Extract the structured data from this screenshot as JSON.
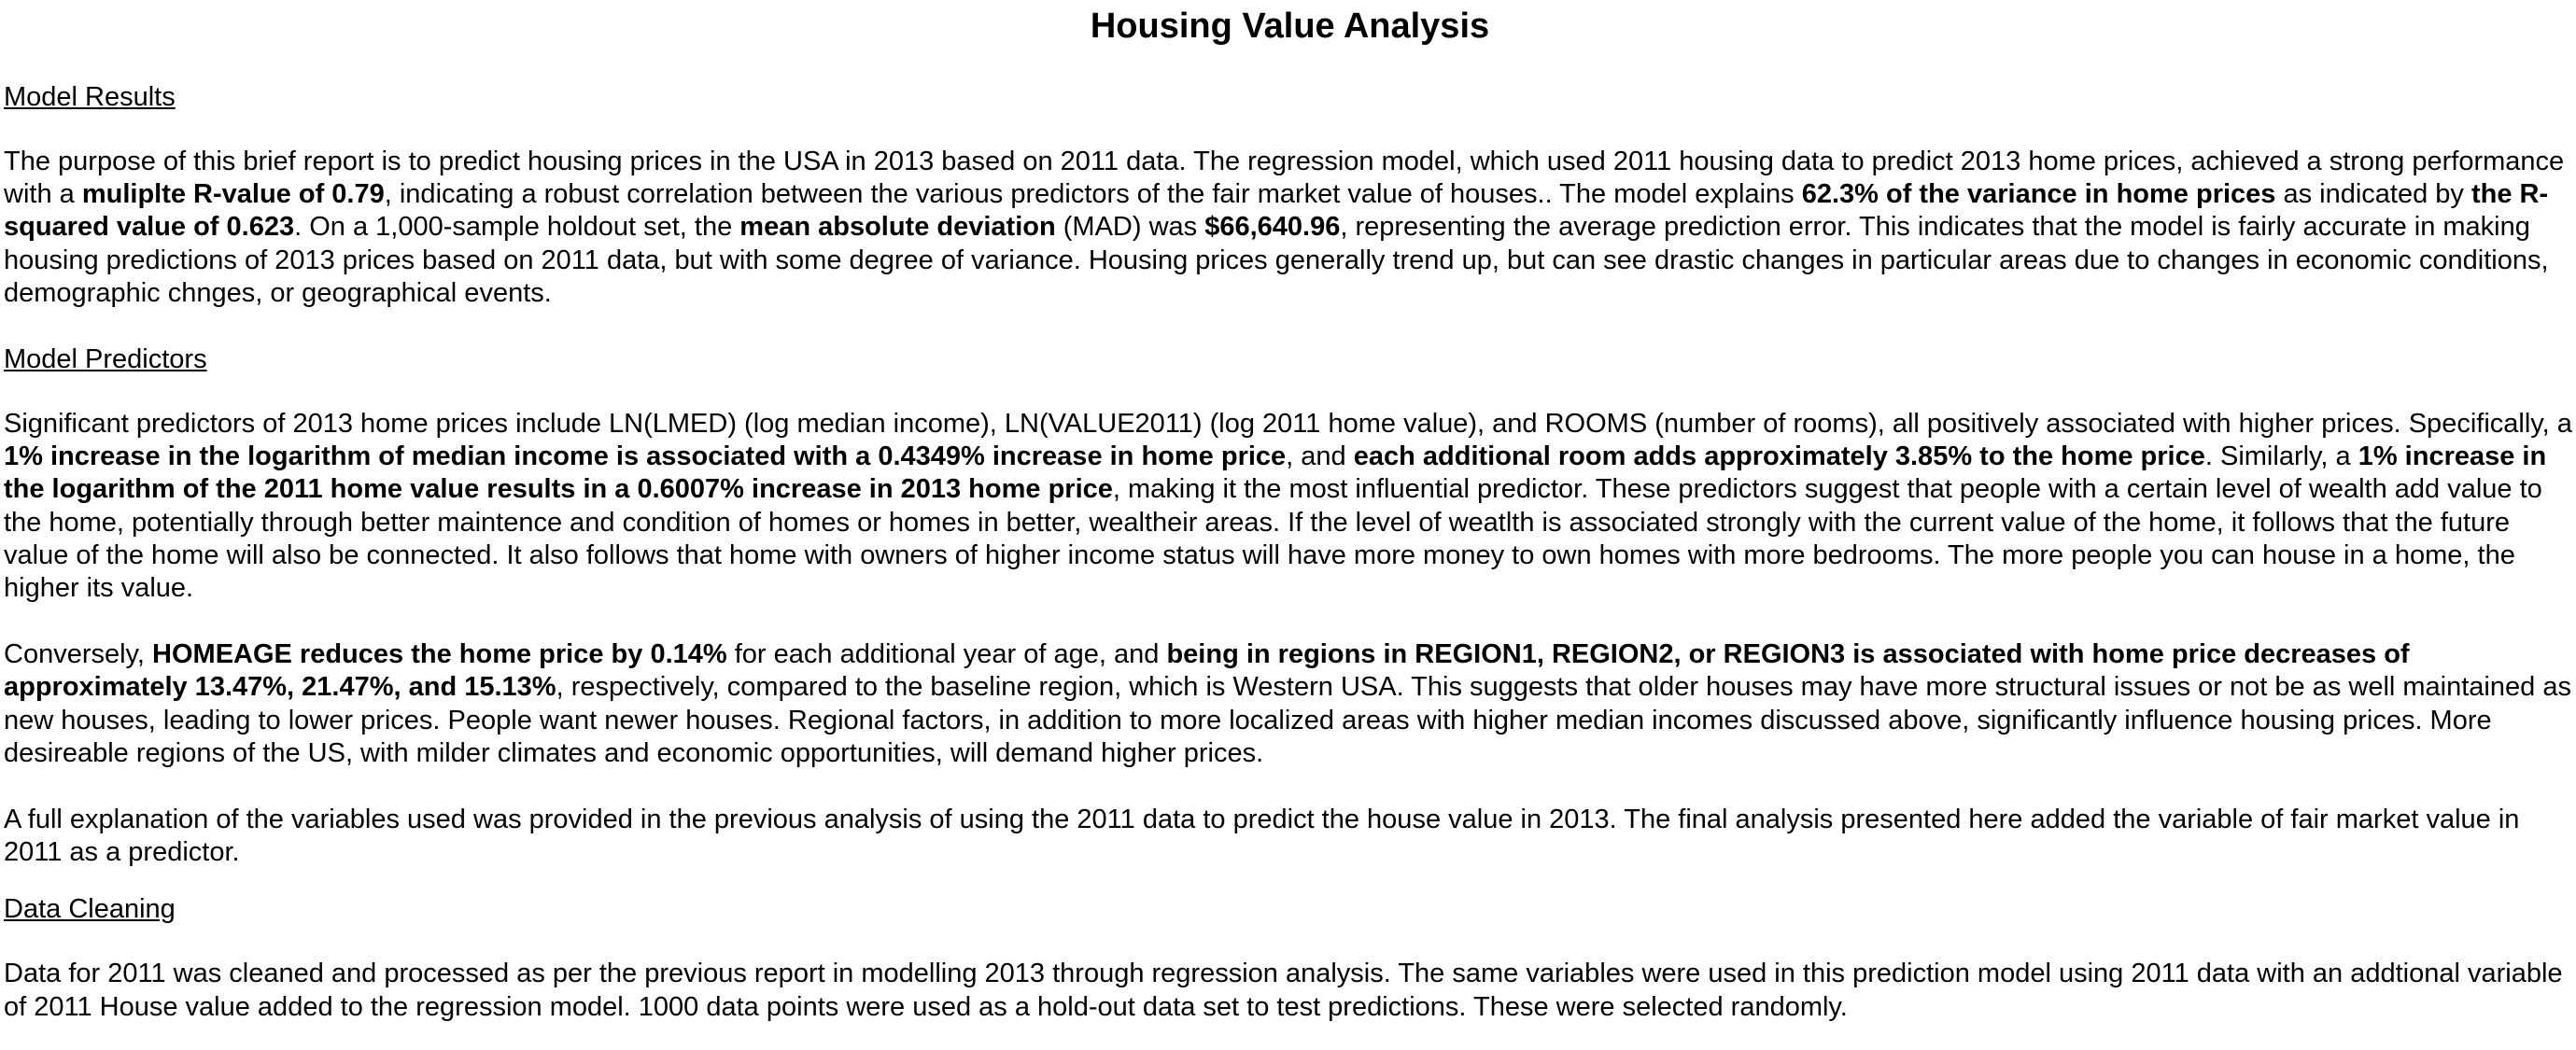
{
  "title": "Housing Value Analysis",
  "sections": {
    "model_results": {
      "heading": "Model Results",
      "p1": {
        "t0": "The purpose of this brief report is to predict housing prices in the USA in 2013 based on 2011 data. The regression model, which used 2011 housing data to predict 2013 home prices, achieved a strong performance with a ",
        "b1": "muliplte R-value of 0.79",
        "t2": ", indicating a robust correlation between the various predictors of the fair market value of houses.. The model explains ",
        "b3": "62.3% of the variance in home prices",
        "t4": " as indicated by ",
        "b5": "the R-squared value of 0.623",
        "t6": ". On a 1,000-sample holdout set, the ",
        "b7": "mean absolute deviation",
        "t8": " (MAD) was ",
        "b9": "$66,640.96",
        "t10": ", representing the average prediction error. This indicates that the model is fairly accurate in making housing predictions of 2013 prices based on 2011 data, but with some degree of variance. Housing prices generally trend up, but can see drastic changes in particular areas due to changes in economic conditions, demographic chnges, or geographical events."
      }
    },
    "model_predictors": {
      "heading": "Model Predictors",
      "p1": {
        "t0": "Significant predictors of 2013 home prices include LN(LMED) (log median income), LN(VALUE2011) (log 2011 home value), and ROOMS (number of rooms), all positively associated with higher prices. Specifically, a ",
        "b1": "1% increase in the logarithm of median income is associated with a 0.4349% increase in home price",
        "t2": ", and ",
        "b3": "each additional room adds approximately 3.85% to the home price",
        "t4": ". Similarly, a ",
        "b5": "1% increase in the logarithm of the 2011 home value results in a 0.6007% increase in 2013 home price",
        "t6": ", making it the most influential predictor. These predictors suggest that people with a certain level of wealth add value to the home, potentially through better maintence and condition of homes or homes in better, wealtheir areas. If the level of weatlth is associated strongly with the current value of the home, it follows that the future value of the home will also be connected. It also follows that home with owners of higher income status will have more money to own homes with more bedrooms. The more people you can house in a home, the higher its value."
      },
      "p2": {
        "t0": "Conversely, ",
        "b1": "HOMEAGE reduces the home price by 0.14%",
        "t2": " for each additional year of age, and ",
        "b3": "being in regions in REGION1, REGION2, or REGION3 is associated with home price decreases of approximately 13.47%, 21.47%, and 15.13%",
        "t4": ", respectively, compared to the baseline region, which is Western USA. This suggests that older houses may have more structural issues or not be as well maintained as new houses, leading to lower prices. People want newer houses. Regional factors, in addition to more localized areas with higher median incomes discussed above, significantly influence housing prices. More desireable regions of the US, with milder climates and economic opportunities, will demand higher prices."
      },
      "p3": "A full explanation of the variables used was provided in the previous analysis of using the 2011 data to predict the house value in 2013. The final analysis presented here added the variable of fair market value in 2011 as a predictor."
    },
    "data_cleaning": {
      "heading": "Data Cleaning",
      "p1": "Data for 2011 was cleaned and processed as per the previous report in modelling 2013 through regression analysis. The same variables were used in this prediction model using 2011 data with an addtional variable of 2011 House value added to the regression model. 1000 data points were used as a hold-out data set to test predictions. These were selected randomly."
    }
  }
}
